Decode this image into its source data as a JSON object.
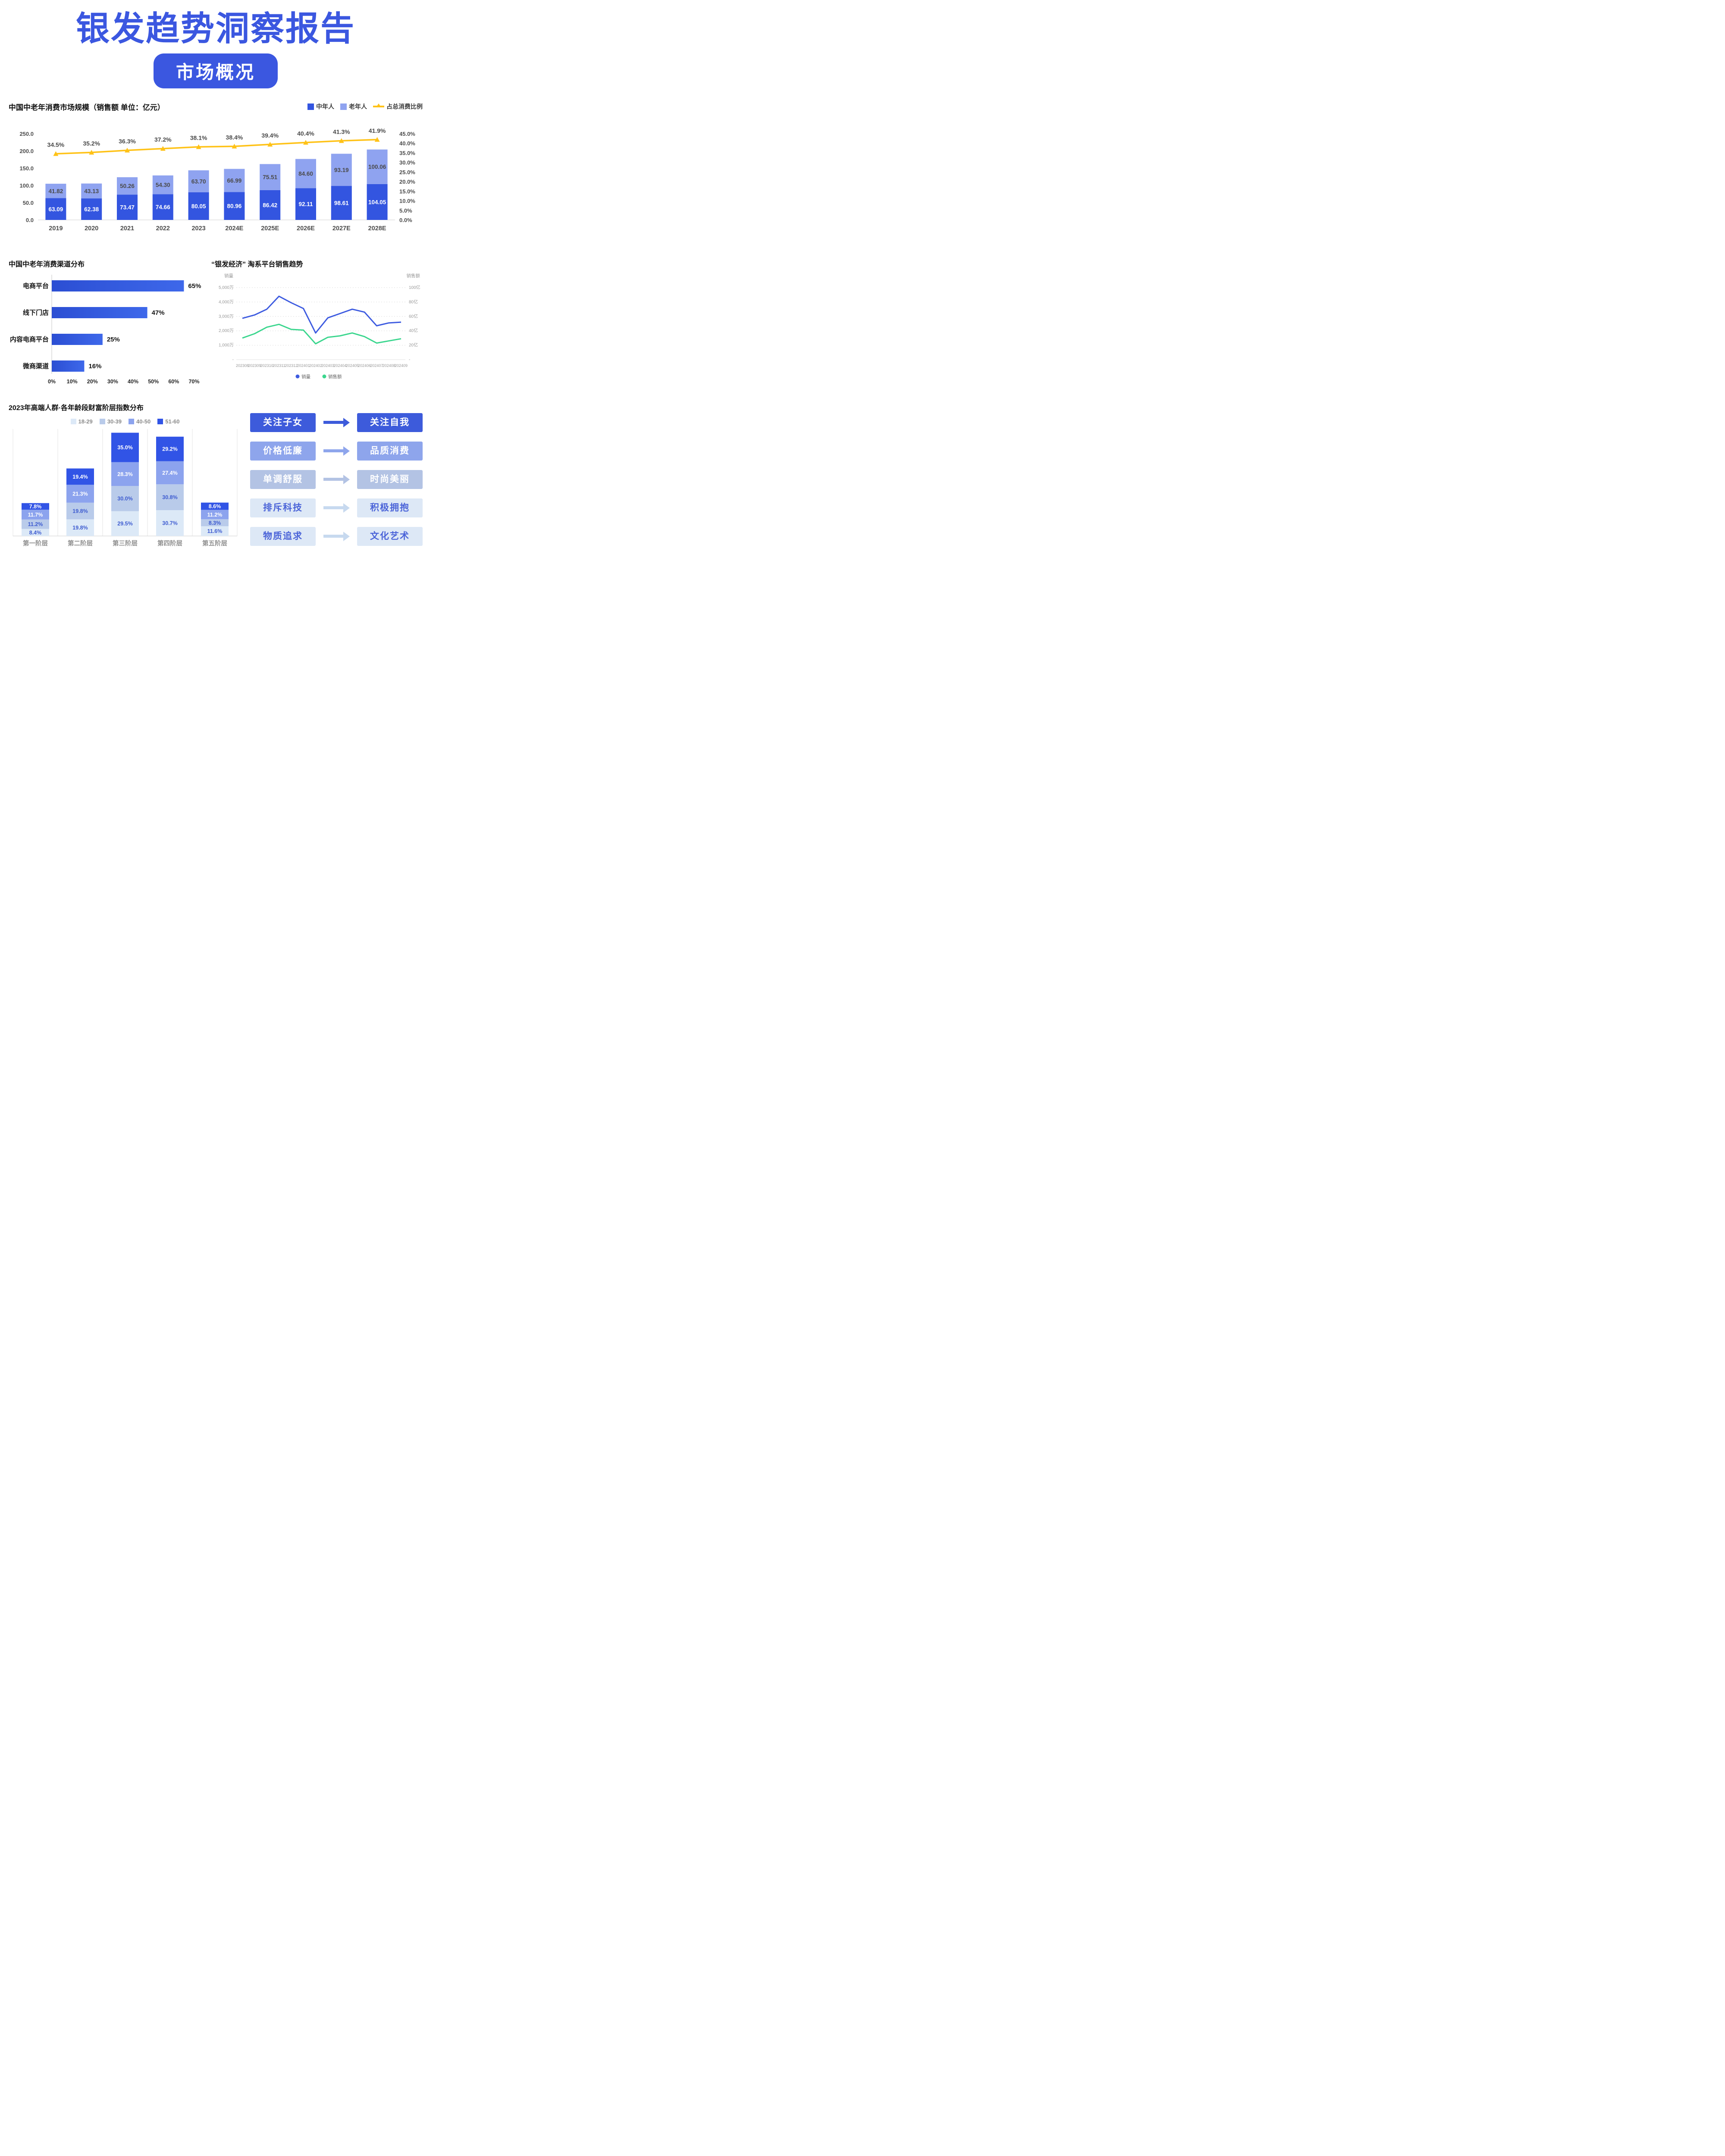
{
  "header": {
    "title": "银发趋势洞察报告",
    "badge": "市场概况"
  },
  "chart_data": [
    {
      "id": "market_size",
      "type": "bar",
      "subtype": "stacked-bars-with-line",
      "title": "中国中老年消费市场规模（销售额  单位：亿元）",
      "categories": [
        "2019",
        "2020",
        "2021",
        "2022",
        "2023",
        "2024E",
        "2025E",
        "2026E",
        "2027E",
        "2028E"
      ],
      "series": [
        {
          "name": "中年人",
          "type": "bar",
          "color": "#3355E0",
          "label_color": "#ffffff",
          "values": [
            63.09,
            62.38,
            73.47,
            74.66,
            80.05,
            80.96,
            86.42,
            92.11,
            98.61,
            104.05
          ]
        },
        {
          "name": "老年人",
          "type": "bar",
          "color": "#8FA3F0",
          "label_color": "#4a4a4a",
          "values": [
            41.82,
            43.13,
            50.26,
            54.3,
            63.7,
            66.99,
            75.51,
            84.6,
            93.19,
            100.06
          ]
        },
        {
          "name": "占总消费比例",
          "type": "line",
          "axis": "right",
          "color": "#FFC216",
          "label_color": "#4a4a4a",
          "values": [
            34.5,
            35.2,
            36.3,
            37.2,
            38.1,
            38.4,
            39.4,
            40.4,
            41.3,
            41.9
          ]
        }
      ],
      "left_axis": {
        "min": 0,
        "max": 250,
        "labels": [
          "250.0",
          "200.0",
          "150.0",
          "100.0",
          "50.0",
          "0.0"
        ]
      },
      "right_axis": {
        "min": 0,
        "max": 45,
        "labels": [
          "45.0%",
          "40.0%",
          "35.0%",
          "30.0%",
          "25.0%",
          "20.0%",
          "15.0%",
          "10.0%",
          "5.0%",
          "0.0%"
        ]
      },
      "grid": false,
      "legend_position": "top-right"
    },
    {
      "id": "channels",
      "type": "bar",
      "subtype": "horizontal",
      "title": "中国中老年消费渠道分布",
      "categories": [
        "电商平台",
        "线下门店",
        "内容电商平台",
        "微商渠道"
      ],
      "values": [
        65,
        47,
        25,
        16
      ],
      "value_labels": [
        "65%",
        "47%",
        "25%",
        "16%"
      ],
      "bar_color_start": "#2B4ED3",
      "bar_color_end": "#3E68EA",
      "xlabel": "",
      "ylabel": "",
      "xlim": [
        0,
        70
      ],
      "x_ticks": [
        "0%",
        "10%",
        "20%",
        "30%",
        "40%",
        "50%",
        "60%",
        "70%"
      ],
      "grid": false
    },
    {
      "id": "taobao_trend",
      "type": "line",
      "title": "“银发经济” 淘系平台销售趋势",
      "x": [
        "202308",
        "202309",
        "202310",
        "202311",
        "202312",
        "202401",
        "202402",
        "202403",
        "202404",
        "202405",
        "202406",
        "202407",
        "202408",
        "202409"
      ],
      "series": [
        {
          "name": "销量",
          "axis": "left",
          "unit": "万",
          "color": "#3D5BE0",
          "values": [
            2870,
            3100,
            3500,
            4400,
            3950,
            3550,
            1850,
            2900,
            3200,
            3500,
            3300,
            2350,
            2550,
            2600
          ]
        },
        {
          "name": "销售额",
          "axis": "right",
          "unit": "亿",
          "color": "#3BD68E",
          "values": [
            30,
            36,
            45,
            49,
            42,
            41,
            22,
            31,
            33,
            37,
            32,
            23,
            26,
            29
          ]
        }
      ],
      "left_axis": {
        "title": "销量",
        "max": 5000,
        "ticks": [
          "5,000万",
          "4,000万",
          "3,000万",
          "2,000万",
          "1,000万"
        ],
        "zero_label": "-"
      },
      "right_axis": {
        "title": "销售额",
        "max": 100,
        "ticks": [
          "100亿",
          "80亿",
          "60亿",
          "40亿",
          "20亿"
        ],
        "zero_label": "-"
      },
      "grid": true,
      "grid_style": "dotted",
      "legend_position": "bottom-center"
    },
    {
      "id": "wealth_tiers",
      "type": "bar",
      "subtype": "stacked",
      "title": "2023年高端人群·各年龄段财富阶层指数分布",
      "categories": [
        "第一阶层",
        "第二阶层",
        "第三阶层",
        "第四阶层",
        "第五阶层"
      ],
      "series": [
        {
          "name": "18-29",
          "color": "#DCE9F7",
          "text_color": "#3D5BD0",
          "values": [
            8.4,
            19.8,
            29.5,
            30.7,
            11.6
          ]
        },
        {
          "name": "30-39",
          "color": "#B9CBEA",
          "text_color": "#3D5BD0",
          "values": [
            11.2,
            19.8,
            30.0,
            30.8,
            8.3
          ]
        },
        {
          "name": "40-50",
          "color": "#8CA3EE",
          "text_color": "#ffffff",
          "values": [
            11.7,
            21.3,
            28.3,
            27.4,
            11.2
          ]
        },
        {
          "name": "51-60",
          "color": "#3154E6",
          "text_color": "#ffffff",
          "values": [
            7.8,
            19.4,
            35.0,
            29.2,
            8.6
          ]
        }
      ],
      "stack_order": "first-series-at-bottom",
      "grid": "vertical-panel-lines",
      "legend_position": "top-center"
    }
  ],
  "transformations": {
    "rows": [
      {
        "from": "关注子女",
        "to": "关注自我",
        "bg": "#3D5BDB",
        "text": "#ffffff",
        "arrow": "#3D5BDB"
      },
      {
        "from": "价格低廉",
        "to": "品质消费",
        "bg": "#8EA5EC",
        "text": "#ffffff",
        "arrow": "#8EA5EC"
      },
      {
        "from": "单调舒服",
        "to": "时尚美丽",
        "bg": "#B3C3E4",
        "text": "#ffffff",
        "arrow": "#B3C3E4"
      },
      {
        "from": "排斥科技",
        "to": "积极拥抱",
        "bg": "#DDE8F6",
        "text": "#4A63D8",
        "arrow": "#C7D9EF"
      },
      {
        "from": "物质追求",
        "to": "文化艺术",
        "bg": "#DDE8F6",
        "text": "#4A63D8",
        "arrow": "#C7D9EF"
      }
    ]
  }
}
